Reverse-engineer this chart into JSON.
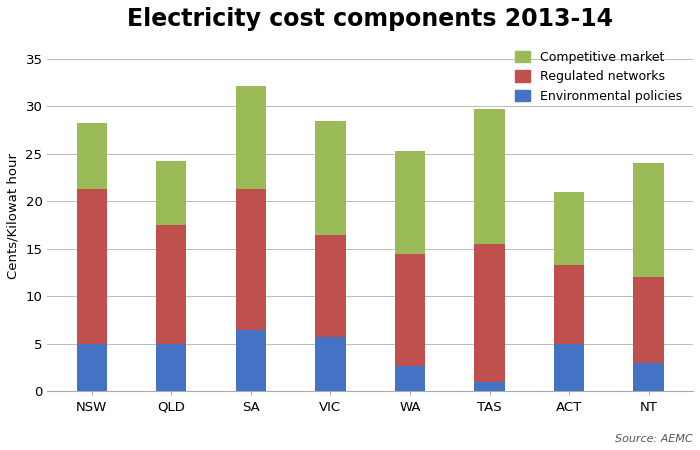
{
  "title": "Electricity cost components 2013-14",
  "ylabel": "Cents/Kilowat hour",
  "source": "Source: AEMC",
  "categories": [
    "NSW",
    "QLD",
    "SA",
    "VIC",
    "WA",
    "TAS",
    "ACT",
    "NT"
  ],
  "environmental_policies": [
    5.0,
    5.0,
    6.5,
    5.7,
    2.7,
    1.0,
    5.0,
    3.0
  ],
  "regulated_networks": [
    16.3,
    12.5,
    14.8,
    10.8,
    11.8,
    14.5,
    8.3,
    9.0
  ],
  "competitive_market": [
    7.0,
    6.8,
    10.8,
    12.0,
    10.8,
    14.2,
    7.7,
    12.0
  ],
  "color_env": "#4472C4",
  "color_reg": "#C0504D",
  "color_comp": "#9BBB59",
  "background_color": "#FFFFFF",
  "plot_bg": "#F2F2F2",
  "ylim": [
    0,
    37
  ],
  "yticks": [
    0,
    5,
    10,
    15,
    20,
    25,
    30,
    35
  ],
  "title_fontsize": 17,
  "label_fontsize": 9.5,
  "tick_fontsize": 9.5,
  "legend_fontsize": 9,
  "bar_width": 0.38
}
